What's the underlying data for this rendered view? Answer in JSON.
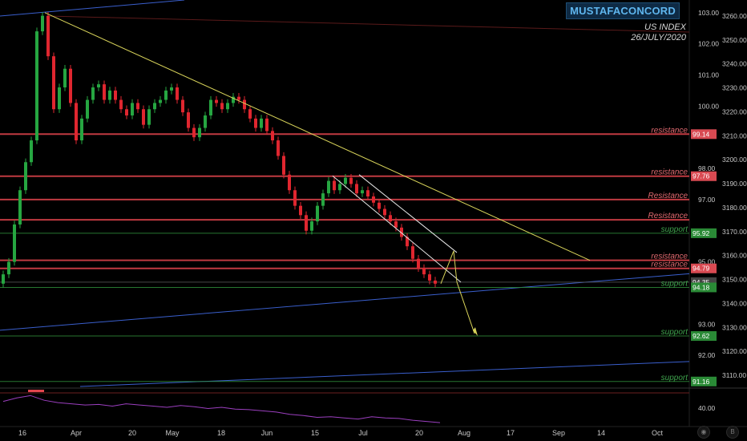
{
  "header": {
    "watermark": "MUSTAFACONCORD",
    "subtitle_line1": "US INDEX",
    "subtitle_line2": "26/JULY/2020"
  },
  "colors": {
    "background": "#000000",
    "bull_candle": "#26a641",
    "bear_candle": "#e0262f",
    "resistance": "#e1454d",
    "support": "#2e8b3a",
    "trendline": "#d9d45a",
    "channel": "#3a5fcd",
    "rsi": "#9b3fbf"
  },
  "chart_data": [
    {
      "type": "candlestick",
      "title": "US INDEX",
      "x_ticks": [
        "16",
        "Apr",
        "20",
        "May",
        "18",
        "Jun",
        "15",
        "Jul",
        "20",
        "Aug",
        "17",
        "Sep",
        "14",
        "Oct"
      ],
      "left_axis_ticks": [
        "103.00",
        "102.00",
        "101.00",
        "100.00",
        "98.00",
        "97.00",
        "95.00",
        "93.00",
        "92.00"
      ],
      "right_axis_ticks": [
        "3260.00",
        "3250.00",
        "3240.00",
        "3230.00",
        "3220.00",
        "3210.00",
        "3200.00",
        "3190.00",
        "3180.00",
        "3170.00",
        "3160.00",
        "3150.00",
        "3140.00",
        "3130.00",
        "3120.00",
        "3110.00"
      ],
      "ylim": [
        91.0,
        103.2
      ],
      "candles_close": [
        94.6,
        95.0,
        96.2,
        97.3,
        98.2,
        98.9,
        102.4,
        102.9,
        101.6,
        99.9,
        100.6,
        101.2,
        100.1,
        98.9,
        99.6,
        100.2,
        100.6,
        100.7,
        100.2,
        100.5,
        100.2,
        99.9,
        99.7,
        100.1,
        99.9,
        99.4,
        99.9,
        100.1,
        100.2,
        100.5,
        100.6,
        100.2,
        99.8,
        99.3,
        99.0,
        99.3,
        99.7,
        100.2,
        100.1,
        99.9,
        100.1,
        100.3,
        100.2,
        99.9,
        99.6,
        99.3,
        99.6,
        99.2,
        98.9,
        98.4,
        97.8,
        97.3,
        96.8,
        96.5,
        96.0,
        96.3,
        96.8,
        97.2,
        97.6,
        97.3,
        97.5,
        97.7,
        97.5,
        97.2,
        97.3,
        97.1,
        96.9,
        96.7,
        96.5,
        96.3,
        96.1,
        95.8,
        95.5,
        95.1,
        94.8,
        94.6,
        94.4,
        94.3
      ],
      "labeled_levels": [
        {
          "price": "99.14",
          "label": "resistance",
          "kind": "resistance",
          "line_value": 99.1
        },
        {
          "price": "97.76",
          "label": "resistance",
          "kind": "resistance",
          "line_value": 97.75
        },
        {
          "price": "",
          "label": "Resistance",
          "kind": "resistance",
          "line_value": 97.0
        },
        {
          "price": "",
          "label": "Resistance",
          "kind": "resistance",
          "line_value": 96.35
        },
        {
          "price": "95.92",
          "label": "support",
          "kind": "support",
          "line_value": 95.92
        },
        {
          "price": "",
          "label": "resistance",
          "kind": "resistance",
          "line_value": 95.05
        },
        {
          "price": "94.79",
          "label": "resistance",
          "kind": "resistance",
          "line_value": 94.79
        },
        {
          "price": "94.35",
          "label": "",
          "kind": "current",
          "line_value": 94.35
        },
        {
          "price": "94.18",
          "label": "support",
          "kind": "support",
          "line_value": 94.18
        },
        {
          "price": "92.62",
          "label": "support",
          "kind": "support",
          "line_value": 92.62
        },
        {
          "price": "91.16",
          "label": "support",
          "kind": "support",
          "line_value": 91.16
        }
      ],
      "rsi": {
        "axis_tick": "40.00",
        "values": [
          60,
          66,
          70,
          62,
          58,
          56,
          54,
          55,
          52,
          56,
          54,
          52,
          50,
          53,
          51,
          48,
          50,
          47,
          46,
          44,
          42,
          38,
          36,
          33,
          34,
          32,
          30,
          34,
          32,
          31,
          28,
          26,
          24
        ]
      }
    }
  ],
  "footer": {
    "icon_left": "eye-icon",
    "icon_right": "log-scale-icon"
  }
}
